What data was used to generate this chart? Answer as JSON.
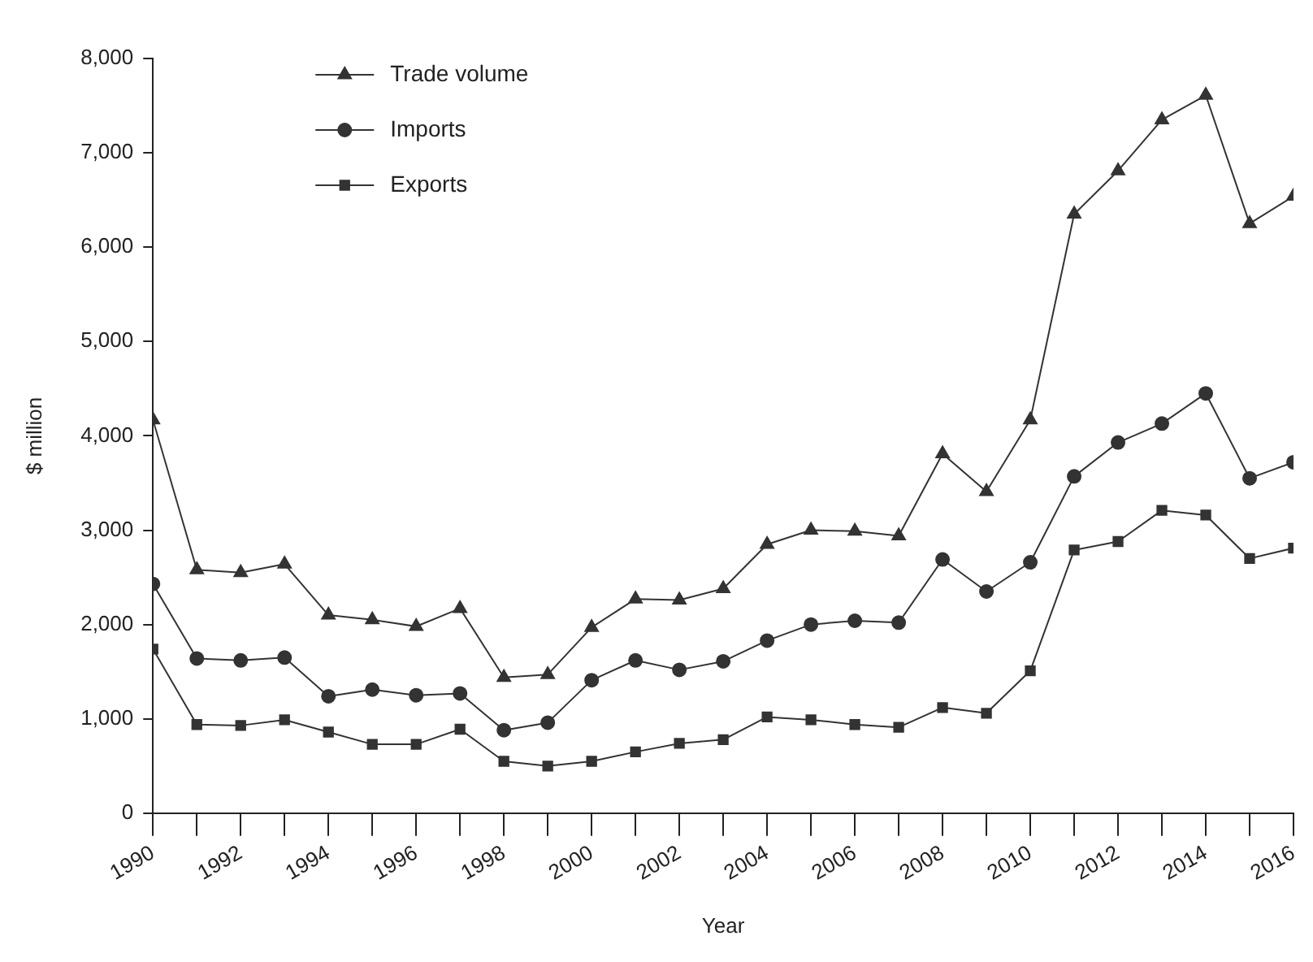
{
  "chart_data": {
    "type": "line",
    "xlabel": "Year",
    "ylabel": "$ million",
    "x": [
      1990,
      1991,
      1992,
      1993,
      1994,
      1995,
      1996,
      1997,
      1998,
      1999,
      2000,
      2001,
      2002,
      2003,
      2004,
      2005,
      2006,
      2007,
      2008,
      2009,
      2010,
      2011,
      2012,
      2013,
      2014,
      2015,
      2016
    ],
    "xlim": [
      1990,
      2016
    ],
    "xticks": [
      1990,
      {
        "value": 1991,
        "label": null
      },
      1992,
      {
        "value": 1993,
        "label": null
      },
      1994,
      {
        "value": 1995,
        "label": null
      },
      1996,
      {
        "value": 1997,
        "label": null
      },
      1998,
      {
        "value": 1999,
        "label": null
      },
      2000,
      {
        "value": 2001,
        "label": null
      },
      2002,
      {
        "value": 2003,
        "label": null
      },
      2004,
      {
        "value": 2005,
        "label": null
      },
      2006,
      {
        "value": 2007,
        "label": null
      },
      2008,
      {
        "value": 2009,
        "label": null
      },
      2010,
      {
        "value": 2011,
        "label": null
      },
      2012,
      {
        "value": 2013,
        "label": null
      },
      2014,
      {
        "value": 2015,
        "label": null
      },
      2016
    ],
    "ylim": [
      0,
      8000
    ],
    "yticks": [
      0,
      {
        "value": 1000,
        "label": "1,000"
      },
      {
        "value": 2000,
        "label": "2,000"
      },
      {
        "value": 3000,
        "label": "3,000"
      },
      {
        "value": 4000,
        "label": "4,000"
      },
      {
        "value": 5000,
        "label": "5,000"
      },
      {
        "value": 6000,
        "label": "6,000"
      },
      {
        "value": 7000,
        "label": "7,000"
      },
      {
        "value": 8000,
        "label": "8,000"
      }
    ],
    "grid": false,
    "legend": "top left",
    "line_style": "solid",
    "series": [
      {
        "name": "Trade volume",
        "color": "#333333",
        "marker": "triangle",
        "values": [
          4170,
          2580,
          2550,
          2640,
          2100,
          2050,
          1980,
          2170,
          1440,
          1470,
          1970,
          2270,
          2260,
          2380,
          2850,
          3000,
          2990,
          2940,
          3810,
          3410,
          4170,
          6350,
          6810,
          7350,
          7610,
          6250,
          6540
        ]
      },
      {
        "name": "Imports",
        "color": "#333333",
        "marker": "circle",
        "values": [
          2430,
          1640,
          1620,
          1650,
          1240,
          1310,
          1250,
          1270,
          880,
          960,
          1410,
          1620,
          1520,
          1610,
          1830,
          2000,
          2040,
          2020,
          2690,
          2350,
          2660,
          3570,
          3930,
          4130,
          4450,
          3550,
          3720
        ]
      },
      {
        "name": "Exports",
        "color": "#333333",
        "marker": "square",
        "values": [
          1740,
          940,
          930,
          990,
          860,
          730,
          730,
          890,
          550,
          500,
          550,
          650,
          740,
          780,
          1020,
          990,
          940,
          910,
          1120,
          1060,
          1510,
          2790,
          2880,
          3210,
          3160,
          2700,
          2810
        ]
      }
    ]
  }
}
